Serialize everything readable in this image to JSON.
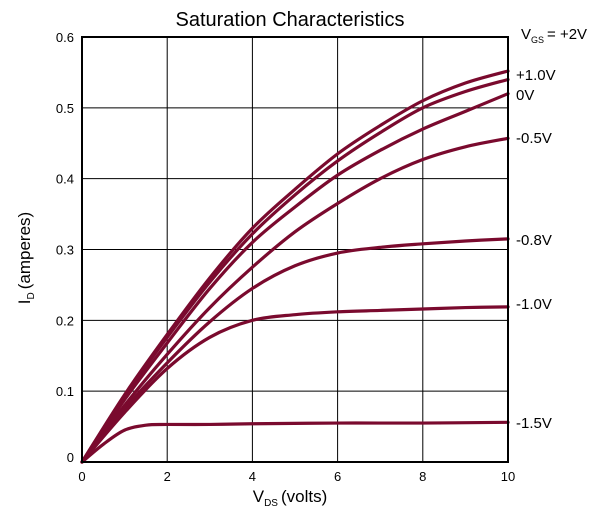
{
  "chart_data": {
    "type": "line",
    "title": "Saturation Characteristics",
    "xlabel_main": "V",
    "xlabel_sub": "DS",
    "xlabel_rest": "(volts)",
    "ylabel_main": "I",
    "ylabel_sub": "D",
    "ylabel_rest": "(amperes)",
    "xlim": [
      0,
      10
    ],
    "ylim": [
      0,
      0.6
    ],
    "x_ticks": [
      0,
      2,
      4,
      6,
      8,
      10
    ],
    "y_ticks": [
      0,
      0.1,
      0.2,
      0.3,
      0.4,
      0.5,
      0.6
    ],
    "x_tick_labels": [
      "0",
      "2",
      "4",
      "6",
      "8",
      "10"
    ],
    "y_tick_labels": [
      "0",
      "0.1",
      "0.2",
      "0.3",
      "0.4",
      "0.5",
      "0.6"
    ],
    "grid": true,
    "line_color": "#7a0a2e",
    "legend_prefix_main": "V",
    "legend_prefix_sub": "GS",
    "legend_prefix_eq": "= +2V",
    "series": [
      {
        "name": "+2V",
        "x": [
          0,
          1,
          2,
          3,
          4,
          5,
          6,
          7,
          8,
          9,
          10
        ],
        "y": [
          0,
          0.095,
          0.18,
          0.26,
          0.33,
          0.385,
          0.435,
          0.475,
          0.51,
          0.535,
          0.552
        ]
      },
      {
        "name": "+1.0V",
        "x": [
          0,
          1,
          2,
          3,
          4,
          5,
          6,
          7,
          8,
          9,
          10
        ],
        "y": [
          0,
          0.093,
          0.176,
          0.254,
          0.322,
          0.377,
          0.425,
          0.465,
          0.5,
          0.523,
          0.54
        ]
      },
      {
        "name": "0V",
        "x": [
          0,
          1,
          2,
          3,
          4,
          5,
          6,
          7,
          8,
          9,
          10
        ],
        "y": [
          0,
          0.088,
          0.168,
          0.245,
          0.31,
          0.36,
          0.405,
          0.44,
          0.47,
          0.495,
          0.52
        ]
      },
      {
        "name": "-0.5V",
        "x": [
          0,
          1,
          2,
          3,
          4,
          5,
          6,
          7,
          8,
          9,
          10
        ],
        "y": [
          0,
          0.08,
          0.152,
          0.218,
          0.275,
          0.325,
          0.365,
          0.4,
          0.427,
          0.445,
          0.457
        ]
      },
      {
        "name": "-0.8V",
        "x": [
          0,
          1,
          2,
          3,
          4,
          5,
          6,
          7,
          8,
          9,
          10
        ],
        "y": [
          0,
          0.075,
          0.14,
          0.198,
          0.245,
          0.277,
          0.295,
          0.303,
          0.308,
          0.312,
          0.315
        ]
      },
      {
        "name": "-1.0V",
        "x": [
          0,
          1,
          2,
          3,
          4,
          5,
          6,
          7,
          8,
          9,
          10
        ],
        "y": [
          0,
          0.07,
          0.132,
          0.176,
          0.2,
          0.208,
          0.212,
          0.214,
          0.216,
          0.218,
          0.219
        ]
      },
      {
        "name": "-1.5V",
        "x": [
          0,
          0.5,
          1,
          1.5,
          2,
          3,
          4,
          6,
          8,
          10
        ],
        "y": [
          0,
          0.025,
          0.045,
          0.052,
          0.053,
          0.053,
          0.054,
          0.055,
          0.055,
          0.056
        ]
      }
    ],
    "series_labels": [
      "+1.0V",
      "0V",
      "-0.5V",
      "-0.8V",
      "-1.0V",
      "-1.5V"
    ]
  }
}
